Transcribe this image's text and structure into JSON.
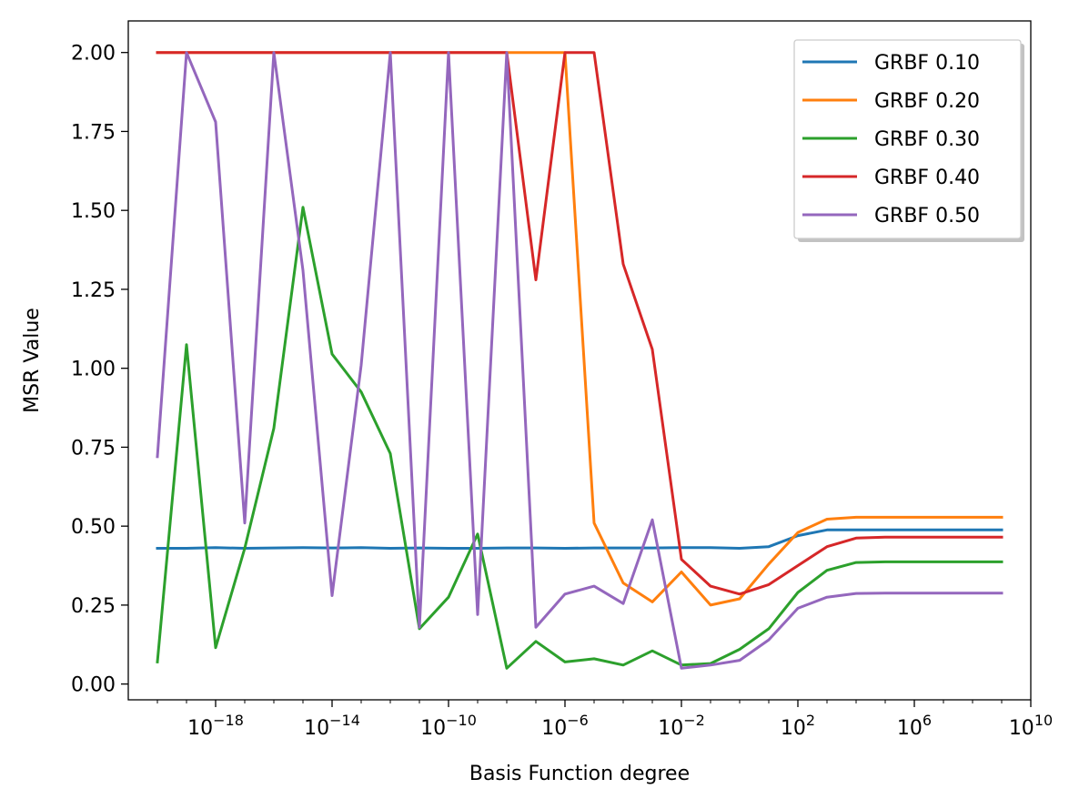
{
  "chart_data": {
    "type": "line",
    "title": "",
    "xlabel": "Basis Function degree",
    "ylabel": "MSR Value",
    "xscale": "log",
    "xlim": [
      1e-21,
      10000000000.0
    ],
    "ylim": [
      -0.05,
      2.1
    ],
    "grid": false,
    "legend_position": "top-right",
    "x": [
      1e-20,
      1e-19,
      1e-18,
      1e-17,
      1e-16,
      1e-15,
      1e-14,
      1e-13,
      1e-12,
      1e-11,
      1e-10,
      1e-09,
      1e-08,
      1e-07,
      1e-06,
      1e-05,
      0.0001,
      0.001,
      0.01,
      0.1,
      1.0,
      10.0,
      100.0,
      1000.0,
      10000.0,
      100000.0,
      1000000.0,
      10000000.0,
      100000000.0,
      1000000000.0
    ],
    "xticks": [
      {
        "value": 1e-18,
        "base": "10",
        "exp": "−18"
      },
      {
        "value": 1e-14,
        "base": "10",
        "exp": "−14"
      },
      {
        "value": 1e-10,
        "base": "10",
        "exp": "−10"
      },
      {
        "value": 1e-06,
        "base": "10",
        "exp": "−6"
      },
      {
        "value": 0.01,
        "base": "10",
        "exp": "−2"
      },
      {
        "value": 100.0,
        "base": "10",
        "exp": "2"
      },
      {
        "value": 1000000.0,
        "base": "10",
        "exp": "6"
      },
      {
        "value": 10000000000.0,
        "base": "10",
        "exp": "10"
      }
    ],
    "yticks": [
      {
        "value": 0.0,
        "label": "0.00"
      },
      {
        "value": 0.25,
        "label": "0.25"
      },
      {
        "value": 0.5,
        "label": "0.50"
      },
      {
        "value": 0.75,
        "label": "0.75"
      },
      {
        "value": 1.0,
        "label": "1.00"
      },
      {
        "value": 1.25,
        "label": "1.25"
      },
      {
        "value": 1.5,
        "label": "1.50"
      },
      {
        "value": 1.75,
        "label": "1.75"
      },
      {
        "value": 2.0,
        "label": "2.00"
      }
    ],
    "series": [
      {
        "name": "GRBF 0.10",
        "color": "#1f77b4",
        "values": [
          0.43,
          0.43,
          0.432,
          0.43,
          0.431,
          0.432,
          0.431,
          0.432,
          0.43,
          0.431,
          0.43,
          0.43,
          0.431,
          0.431,
          0.43,
          0.431,
          0.431,
          0.431,
          0.432,
          0.432,
          0.43,
          0.435,
          0.47,
          0.488,
          0.488,
          0.488,
          0.488,
          0.488,
          0.488,
          0.488
        ]
      },
      {
        "name": "GRBF 0.20",
        "color": "#ff7f0e",
        "values": [
          2.0,
          2.0,
          2.0,
          2.0,
          2.0,
          2.0,
          2.0,
          2.0,
          2.0,
          2.0,
          2.0,
          2.0,
          2.0,
          2.0,
          2.0,
          0.51,
          0.32,
          0.26,
          0.355,
          0.25,
          0.27,
          0.38,
          0.48,
          0.522,
          0.528,
          0.528,
          0.528,
          0.528,
          0.528,
          0.528
        ]
      },
      {
        "name": "GRBF 0.30",
        "color": "#2ca02c",
        "values": [
          0.07,
          1.075,
          0.115,
          0.43,
          0.81,
          1.51,
          1.045,
          0.925,
          0.73,
          0.175,
          0.275,
          0.475,
          0.05,
          0.135,
          0.07,
          0.08,
          0.06,
          0.105,
          0.06,
          0.065,
          0.11,
          0.175,
          0.29,
          0.36,
          0.385,
          0.387,
          0.387,
          0.387,
          0.387,
          0.387
        ]
      },
      {
        "name": "GRBF 0.40",
        "color": "#d62728",
        "values": [
          2.0,
          2.0,
          2.0,
          2.0,
          2.0,
          2.0,
          2.0,
          2.0,
          2.0,
          2.0,
          2.0,
          2.0,
          2.0,
          1.28,
          2.0,
          2.0,
          1.33,
          1.06,
          0.395,
          0.31,
          0.285,
          0.315,
          0.375,
          0.435,
          0.462,
          0.465,
          0.465,
          0.465,
          0.465,
          0.465
        ]
      },
      {
        "name": "GRBF 0.50",
        "color": "#9467bd",
        "values": [
          0.72,
          2.0,
          1.78,
          0.51,
          2.0,
          1.31,
          0.28,
          1.01,
          2.0,
          0.18,
          2.0,
          0.22,
          2.0,
          0.18,
          0.285,
          0.31,
          0.255,
          0.52,
          0.05,
          0.06,
          0.075,
          0.14,
          0.24,
          0.275,
          0.287,
          0.288,
          0.288,
          0.288,
          0.288,
          0.288
        ]
      }
    ]
  }
}
